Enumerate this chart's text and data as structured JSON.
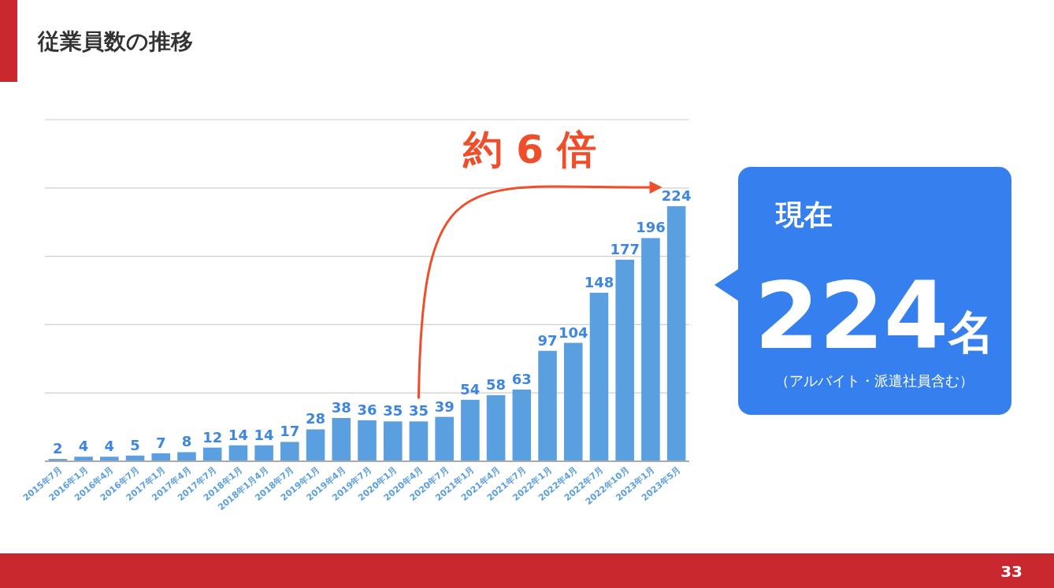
{
  "chart_data": {
    "type": "bar",
    "title": "従業員数の推移",
    "categories": [
      "2015年7月",
      "2016年1月",
      "2016年4月",
      "2016年7月",
      "2017年1月",
      "2017年4月",
      "2017年7月",
      "2018年1月",
      "2018年1月4月",
      "2018年7月",
      "2019年1月",
      "2019年4月",
      "2019年7月",
      "2020年1月",
      "2020年4月",
      "2020年7月",
      "2021年1月",
      "2021年4月",
      "2021年7月",
      "2022年1月",
      "2022年4月",
      "2022年7月",
      "2022年10月",
      "2023年1月",
      "2023年5月"
    ],
    "values": [
      2,
      4,
      4,
      5,
      7,
      8,
      12,
      14,
      14,
      17,
      28,
      38,
      36,
      35,
      35,
      39,
      54,
      58,
      63,
      97,
      104,
      148,
      177,
      196,
      224
    ],
    "color": "#5a9fdf",
    "data_labels": true,
    "ylim": [
      0,
      300
    ],
    "yticks": [
      {
        "value": 0,
        "label": null
      },
      {
        "value": 60,
        "label": null
      },
      {
        "value": 120,
        "label": null
      },
      {
        "value": 180,
        "label": null
      },
      {
        "value": 240,
        "label": null
      },
      {
        "value": 300,
        "label": null
      }
    ],
    "grid": "y",
    "tick_labels": "x",
    "annotations": [
      {
        "text": "約 6 倍",
        "x": "2023年5月",
        "y": 224
      },
      "現在",
      "224名",
      "（アルバイト・派遣社員含む）",
      "33"
    ]
  }
}
